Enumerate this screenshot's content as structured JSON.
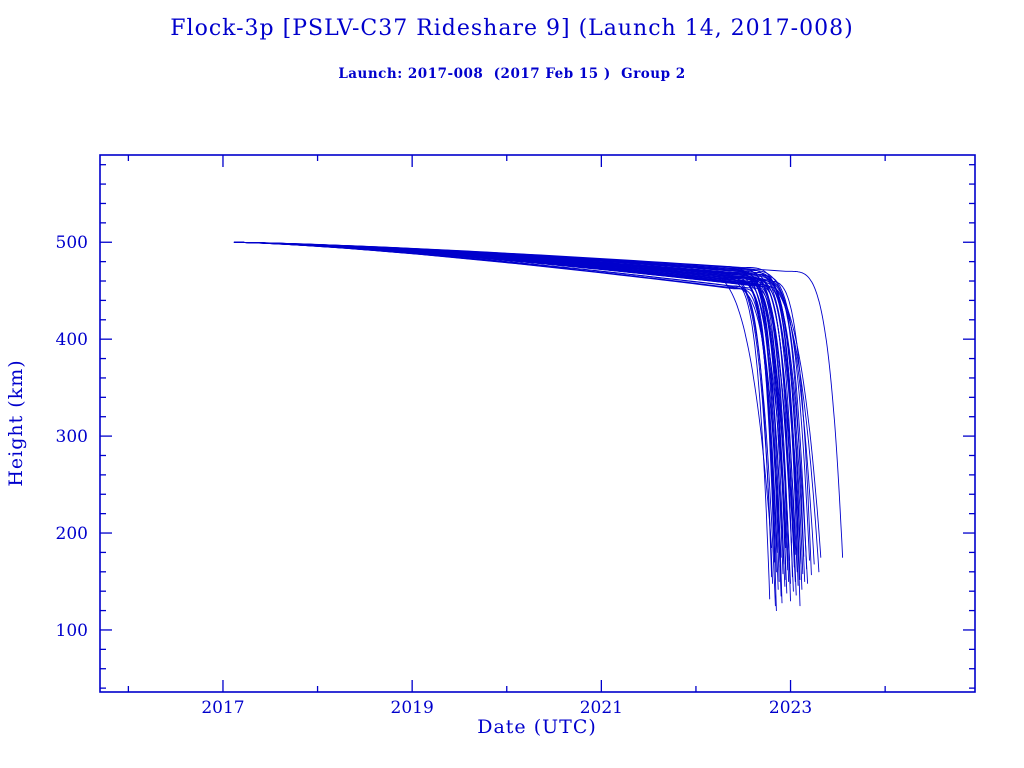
{
  "chart_data": {
    "type": "line",
    "title": "Flock-3p [PSLV-C37 Rideshare 9] (Launch 14, 2017-008)",
    "subtitle": "Launch: 2017-008  (2017 Feb 15 )  Group 2",
    "xlabel": "Date (UTC)",
    "ylabel": "Height (km)",
    "xlim": [
      2015.7,
      2024.95
    ],
    "ylim": [
      36,
      590
    ],
    "xticks": [
      2017,
      2019,
      2021,
      2023
    ],
    "xticks_minor_step": 1,
    "yticks": [
      100,
      200,
      300,
      400,
      500
    ],
    "yticks_minor_step": 20,
    "grid": false,
    "legend": false,
    "line_color": "#0000CC",
    "text_color": "#0000CC",
    "background": "#FFFFFF",
    "start": {
      "year": 2017.12,
      "height_km": 500
    },
    "description": "Orbital decay curves for the Flock-3p cubesat group: all satellites start near 500 km in early 2017, decay slowly to ~455-475 km by 2022, then reenter rapidly between late 2022 and mid 2023 with final tracked heights of ~120-195 km.",
    "series": [
      {
        "end": 2022.78,
        "end_h": 132,
        "knee_h": 460,
        "plunge": 0.5
      },
      {
        "end": 2022.8,
        "end_h": 155,
        "knee_h": 455,
        "plunge": 0.45
      },
      {
        "end": 2022.8,
        "end_h": 185,
        "knee_h": 472,
        "plunge": 0.95
      },
      {
        "end": 2022.81,
        "end_h": 148,
        "knee_h": 463,
        "plunge": 0.55
      },
      {
        "end": 2022.83,
        "end_h": 170,
        "knee_h": 458,
        "plunge": 0.4
      },
      {
        "end": 2022.84,
        "end_h": 125,
        "knee_h": 466,
        "plunge": 0.6
      },
      {
        "end": 2022.85,
        "end_h": 160,
        "knee_h": 452,
        "plunge": 0.45
      },
      {
        "end": 2022.85,
        "end_h": 120,
        "knee_h": 452,
        "plunge": 0.38
      },
      {
        "end": 2022.86,
        "end_h": 180,
        "knee_h": 461,
        "plunge": 0.5
      },
      {
        "end": 2022.87,
        "end_h": 142,
        "knee_h": 468,
        "plunge": 0.55
      },
      {
        "end": 2022.88,
        "end_h": 150,
        "knee_h": 457,
        "plunge": 0.42
      },
      {
        "end": 2022.89,
        "end_h": 165,
        "knee_h": 464,
        "plunge": 0.58
      },
      {
        "end": 2022.9,
        "end_h": 135,
        "knee_h": 470,
        "plunge": 0.48
      },
      {
        "end": 2022.9,
        "end_h": 175,
        "knee_h": 454,
        "plunge": 0.62
      },
      {
        "end": 2022.91,
        "end_h": 128,
        "knee_h": 462,
        "plunge": 0.44
      },
      {
        "end": 2022.92,
        "end_h": 158,
        "knee_h": 467,
        "plunge": 0.52
      },
      {
        "end": 2022.93,
        "end_h": 168,
        "knee_h": 459,
        "plunge": 0.46
      },
      {
        "end": 2022.94,
        "end_h": 145,
        "knee_h": 472,
        "plunge": 0.65
      },
      {
        "end": 2022.95,
        "end_h": 152,
        "knee_h": 456,
        "plunge": 0.4
      },
      {
        "end": 2022.95,
        "end_h": 185,
        "knee_h": 465,
        "plunge": 0.55
      },
      {
        "end": 2022.95,
        "end_h": 195,
        "knee_h": 475,
        "plunge": 0.72
      },
      {
        "end": 2022.96,
        "end_h": 138,
        "knee_h": 460,
        "plunge": 0.5
      },
      {
        "end": 2022.97,
        "end_h": 162,
        "knee_h": 469,
        "plunge": 0.58
      },
      {
        "end": 2022.98,
        "end_h": 150,
        "knee_h": 453,
        "plunge": 0.43
      },
      {
        "end": 2022.99,
        "end_h": 172,
        "knee_h": 466,
        "plunge": 0.6
      },
      {
        "end": 2023.0,
        "end_h": 130,
        "knee_h": 458,
        "plunge": 0.47
      },
      {
        "end": 2023.0,
        "end_h": 148,
        "knee_h": 471,
        "plunge": 0.66
      },
      {
        "end": 2023.01,
        "end_h": 190,
        "knee_h": 462,
        "plunge": 0.52
      },
      {
        "end": 2023.02,
        "end_h": 155,
        "knee_h": 455,
        "plunge": 0.41
      },
      {
        "end": 2023.03,
        "end_h": 140,
        "knee_h": 468,
        "plunge": 0.57
      },
      {
        "end": 2023.04,
        "end_h": 165,
        "knee_h": 460,
        "plunge": 0.49
      },
      {
        "end": 2023.05,
        "end_h": 150,
        "knee_h": 473,
        "plunge": 0.68
      },
      {
        "end": 2023.05,
        "end_h": 178,
        "knee_h": 457,
        "plunge": 0.44
      },
      {
        "end": 2023.06,
        "end_h": 136,
        "knee_h": 464,
        "plunge": 0.54
      },
      {
        "end": 2023.07,
        "end_h": 160,
        "knee_h": 470,
        "plunge": 0.62
      },
      {
        "end": 2023.08,
        "end_h": 146,
        "knee_h": 456,
        "plunge": 0.42
      },
      {
        "end": 2023.09,
        "end_h": 170,
        "knee_h": 463,
        "plunge": 0.56
      },
      {
        "end": 2023.1,
        "end_h": 152,
        "knee_h": 467,
        "plunge": 0.5
      },
      {
        "end": 2023.1,
        "end_h": 125,
        "knee_h": 459,
        "plunge": 0.46
      },
      {
        "end": 2023.11,
        "end_h": 168,
        "knee_h": 472,
        "plunge": 0.64
      },
      {
        "end": 2023.12,
        "end_h": 142,
        "knee_h": 461,
        "plunge": 0.48
      },
      {
        "end": 2023.13,
        "end_h": 158,
        "knee_h": 465,
        "plunge": 0.55
      },
      {
        "end": 2023.14,
        "end_h": 176,
        "knee_h": 454,
        "plunge": 0.43
      },
      {
        "end": 2023.15,
        "end_h": 150,
        "knee_h": 469,
        "plunge": 0.6
      },
      {
        "end": 2023.17,
        "end_h": 163,
        "knee_h": 462,
        "plunge": 0.52
      },
      {
        "end": 2023.18,
        "end_h": 148,
        "knee_h": 474,
        "plunge": 0.7
      },
      {
        "end": 2023.2,
        "end_h": 172,
        "knee_h": 466,
        "plunge": 0.58
      },
      {
        "end": 2023.22,
        "end_h": 157,
        "knee_h": 460,
        "plunge": 0.5
      },
      {
        "end": 2023.25,
        "end_h": 168,
        "knee_h": 471,
        "plunge": 0.75
      },
      {
        "end": 2023.3,
        "end_h": 160,
        "knee_h": 464,
        "plunge": 0.85
      },
      {
        "end": 2023.32,
        "end_h": 175,
        "knee_h": 468,
        "plunge": 0.9
      },
      {
        "end": 2023.55,
        "end_h": 175,
        "knee_h": 470,
        "plunge": 0.6
      }
    ]
  }
}
